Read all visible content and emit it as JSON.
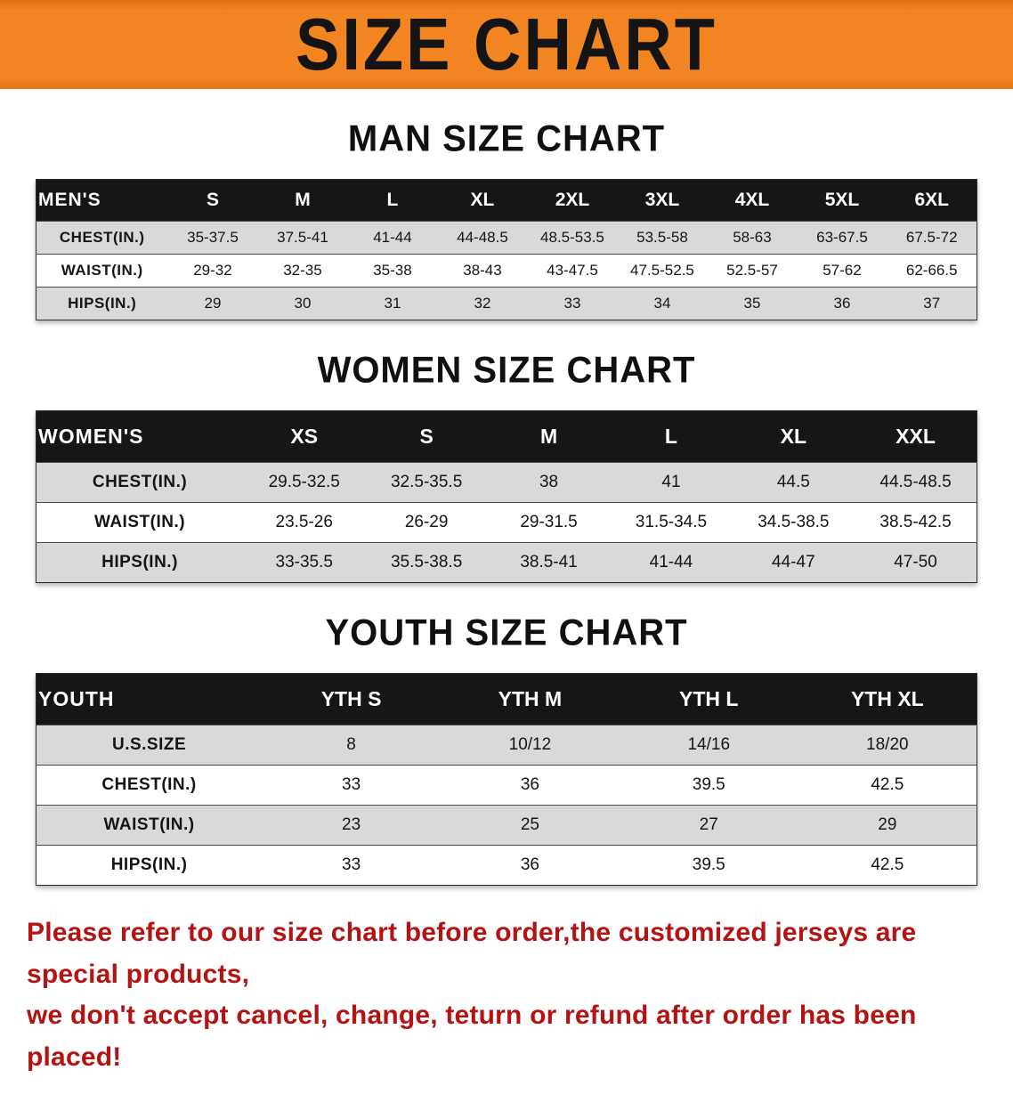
{
  "banner": {
    "title": "SIZE CHART",
    "bg_color": "#f28522",
    "text_color": "#141414"
  },
  "sections": [
    {
      "heading": "MAN SIZE CHART",
      "table": {
        "label": "MEN'S",
        "columns": [
          "S",
          "M",
          "L",
          "XL",
          "2XL",
          "3XL",
          "4XL",
          "5XL",
          "6XL"
        ],
        "rows": [
          {
            "label": "CHEST(IN.)",
            "values": [
              "35-37.5",
              "37.5-41",
              "41-44",
              "44-48.5",
              "48.5-53.5",
              "53.5-58",
              "58-63",
              "63-67.5",
              "67.5-72"
            ]
          },
          {
            "label": "WAIST(IN.)",
            "values": [
              "29-32",
              "32-35",
              "35-38",
              "38-43",
              "43-47.5",
              "47.5-52.5",
              "52.5-57",
              "57-62",
              "62-66.5"
            ]
          },
          {
            "label": "HIPS(IN.)",
            "values": [
              "29",
              "30",
              "31",
              "32",
              "33",
              "34",
              "35",
              "36",
              "37"
            ]
          }
        ]
      }
    },
    {
      "heading": "WOMEN SIZE CHART",
      "table": {
        "label": "WOMEN'S",
        "columns": [
          "XS",
          "S",
          "M",
          "L",
          "XL",
          "XXL"
        ],
        "rows": [
          {
            "label": "CHEST(IN.)",
            "values": [
              "29.5-32.5",
              "32.5-35.5",
              "38",
              "41",
              "44.5",
              "44.5-48.5"
            ]
          },
          {
            "label": "WAIST(IN.)",
            "values": [
              "23.5-26",
              "26-29",
              "29-31.5",
              "31.5-34.5",
              "34.5-38.5",
              "38.5-42.5"
            ]
          },
          {
            "label": "HIPS(IN.)",
            "values": [
              "33-35.5",
              "35.5-38.5",
              "38.5-41",
              "41-44",
              "44-47",
              "47-50"
            ]
          }
        ]
      }
    },
    {
      "heading": "YOUTH SIZE CHART",
      "table": {
        "label": "YOUTH",
        "columns": [
          "YTH S",
          "YTH M",
          "YTH L",
          "YTH XL"
        ],
        "rows": [
          {
            "label": "U.S.SIZE",
            "values": [
              "8",
              "10/12",
              "14/16",
              "18/20"
            ]
          },
          {
            "label": "CHEST(IN.)",
            "values": [
              "33",
              "36",
              "39.5",
              "42.5"
            ]
          },
          {
            "label": "WAIST(IN.)",
            "values": [
              "23",
              "25",
              "27",
              "29"
            ]
          },
          {
            "label": "HIPS(IN.)",
            "values": [
              "33",
              "36",
              "39.5",
              "42.5"
            ]
          }
        ]
      }
    }
  ],
  "footer": {
    "line1": "Please refer to our size chart before order,the customized jerseys are special products,",
    "line2": "we don't accept cancel, change, teturn or refund after order has been placed!",
    "text_color": "#b41313"
  }
}
